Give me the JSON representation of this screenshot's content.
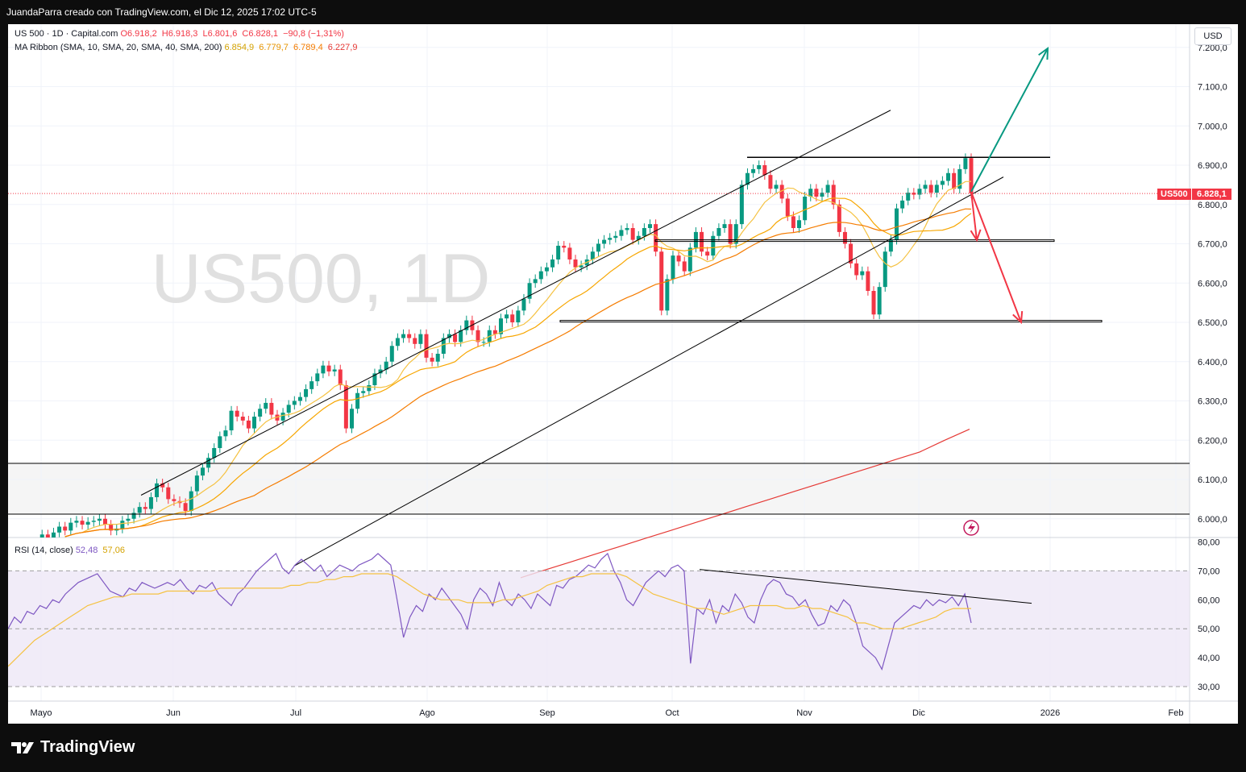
{
  "header": {
    "text": "JuandaParra creado con TradingView.com, el Dic 12, 2025 17:02 UTC-5"
  },
  "footer": {
    "brand": "TradingView"
  },
  "legend": {
    "symbol": "US 500 · 1D · Capital.com",
    "open": "O6.918,2",
    "high": "H6.918,3",
    "low": "L6.801,6",
    "close": "C6.828,1",
    "change": "−90,8 (−1,31%)",
    "ma_label": "MA Ribbon (SMA, 10, SMA, 20, SMA, 40, SMA, 200)",
    "ma_values": [
      "6.854,9",
      "6.779,7",
      "6.789,4",
      "6.227,9"
    ],
    "rsi_label": "RSI (14, close)",
    "rsi_values": [
      "52,48",
      "57,06"
    ]
  },
  "watermark": "US500, 1D",
  "currency": "USD",
  "price_tag": {
    "symbol": "US500",
    "value": "6.828,1"
  },
  "colors": {
    "up": "#089981",
    "down": "#f23645",
    "ma10": "#f5c242",
    "ma20": "#f7a600",
    "ma40": "#f57c00",
    "ma200": "#e53935",
    "rsi": "#7e57c2",
    "rsi_ma": "#f5c242",
    "arrow_up": "#089981",
    "arrow_down": "#f23645"
  },
  "icons": {
    "flash": "lightning-icon",
    "logo": "tradingview-logo-icon"
  },
  "chart_data": [
    {
      "type": "candlestick",
      "title": "US 500 · 1D · Capital.com",
      "price_axis": [
        "7.200,0",
        "7.100,0",
        "7.000,0",
        "6.900,0",
        "6.800,0",
        "6.700,0",
        "6.600,0",
        "6.500,0",
        "6.400,0",
        "6.300,0",
        "6.200,0",
        "6.100,0",
        "6.000,0"
      ],
      "ylim": [
        5950,
        7250
      ],
      "time_axis": [
        "Mayo",
        "Jun",
        "Jul",
        "Ago",
        "Sep",
        "Oct",
        "Nov",
        "Dic",
        "2026",
        "Feb"
      ],
      "closes": [
        5920,
        5935,
        5960,
        5950,
        5965,
        5980,
        5970,
        5990,
        5995,
        5985,
        5992,
        5995,
        6000,
        5985,
        5970,
        5975,
        5995,
        6000,
        6015,
        6030,
        6025,
        6055,
        6090,
        6080,
        6050,
        6045,
        6040,
        6020,
        6070,
        6110,
        6130,
        6155,
        6180,
        6210,
        6225,
        6275,
        6260,
        6250,
        6230,
        6260,
        6280,
        6295,
        6265,
        6250,
        6270,
        6290,
        6300,
        6310,
        6330,
        6350,
        6370,
        6390,
        6375,
        6380,
        6340,
        6230,
        6280,
        6320,
        6325,
        6340,
        6370,
        6380,
        6400,
        6440,
        6460,
        6470,
        6460,
        6445,
        6470,
        6410,
        6400,
        6420,
        6460,
        6470,
        6450,
        6480,
        6505,
        6480,
        6450,
        6450,
        6480,
        6470,
        6510,
        6520,
        6500,
        6530,
        6560,
        6600,
        6610,
        6630,
        6640,
        6660,
        6695,
        6690,
        6660,
        6640,
        6645,
        6660,
        6680,
        6700,
        6710,
        6715,
        6720,
        6735,
        6740,
        6710,
        6720,
        6740,
        6750,
        6680,
        6530,
        6610,
        6670,
        6655,
        6630,
        6690,
        6730,
        6680,
        6670,
        6720,
        6740,
        6750,
        6700,
        6750,
        6850,
        6880,
        6890,
        6900,
        6875,
        6840,
        6850,
        6815,
        6770,
        6740,
        6760,
        6820,
        6840,
        6820,
        6830,
        6850,
        6800,
        6730,
        6700,
        6650,
        6620,
        6630,
        6580,
        6520,
        6590,
        6680,
        6710,
        6790,
        6810,
        6830,
        6825,
        6840,
        6850,
        6830,
        6850,
        6860,
        6880,
        6840,
        6890,
        6918,
        6828
      ],
      "extra_closes_info": "Plotted from start of visible window; earlier values clipped below 5950",
      "ma200": [
        5850,
        5870,
        5890,
        5910,
        5930,
        5950,
        5970,
        5990,
        6010,
        6030,
        6050,
        6070,
        6090,
        6110,
        6130,
        6150,
        6170,
        6200,
        6227.9
      ]
    },
    {
      "type": "line",
      "title": "RSI (14, close)",
      "rsi_axis": [
        "80,00",
        "70,00",
        "60,00",
        "50,00",
        "40,00",
        "30,00"
      ],
      "ylim": [
        28,
        82
      ],
      "bands": [
        30,
        50,
        70
      ],
      "rsi": [
        50,
        54,
        52,
        56,
        55,
        58,
        57,
        60,
        59,
        62,
        64,
        66,
        67,
        68,
        69,
        66,
        63,
        62,
        61,
        64,
        63,
        66,
        65,
        64,
        65,
        66,
        65,
        67,
        64,
        62,
        65,
        64,
        66,
        62,
        60,
        58,
        62,
        64,
        67,
        70,
        72,
        74,
        76,
        71,
        69,
        72,
        74,
        72,
        70,
        72,
        68,
        70,
        72,
        71,
        70,
        72,
        73,
        74,
        76,
        74,
        72,
        60,
        47,
        54,
        58,
        56,
        62,
        60,
        64,
        61,
        58,
        55,
        50,
        60,
        64,
        62,
        58,
        66,
        60,
        58,
        62,
        60,
        57,
        62,
        60,
        58,
        65,
        64,
        67,
        68,
        70,
        72,
        71,
        74,
        76,
        70,
        66,
        60,
        58,
        62,
        66,
        68,
        70,
        68,
        71,
        72,
        70,
        38,
        57,
        55,
        60,
        52,
        58,
        56,
        62,
        59,
        54,
        52,
        60,
        65,
        67,
        66,
        62,
        61,
        58,
        60,
        55,
        51,
        52,
        58,
        56,
        60,
        58,
        52,
        44,
        42,
        40,
        36,
        44,
        52,
        54,
        56,
        58,
        57,
        60,
        58,
        60,
        59,
        61,
        58,
        62,
        52
      ],
      "rsi_ma": [
        37,
        40,
        43,
        46,
        48,
        50,
        52,
        54,
        56,
        58,
        59,
        60,
        61,
        61,
        62,
        62,
        62,
        62,
        63,
        63,
        63,
        63,
        63,
        63,
        64,
        64,
        64,
        64,
        64,
        64,
        64,
        64,
        65,
        65,
        66,
        66,
        67,
        67,
        68,
        68,
        69,
        69,
        69,
        69,
        68,
        66,
        64,
        62,
        61,
        60,
        60,
        60,
        59,
        59,
        59,
        59,
        60,
        60,
        61,
        62,
        63,
        65,
        66,
        67,
        68,
        68,
        69,
        69,
        69,
        69,
        68,
        66,
        64,
        62,
        61,
        60,
        59,
        58,
        57,
        57,
        56,
        55,
        56,
        57,
        58,
        58,
        58,
        58,
        57,
        57,
        58,
        57,
        57,
        56,
        55,
        54,
        52,
        52,
        51,
        50,
        50,
        50,
        51,
        52,
        53,
        54,
        56,
        57,
        57,
        57
      ],
      "trendline_note": "descending resistance on RSI"
    }
  ]
}
